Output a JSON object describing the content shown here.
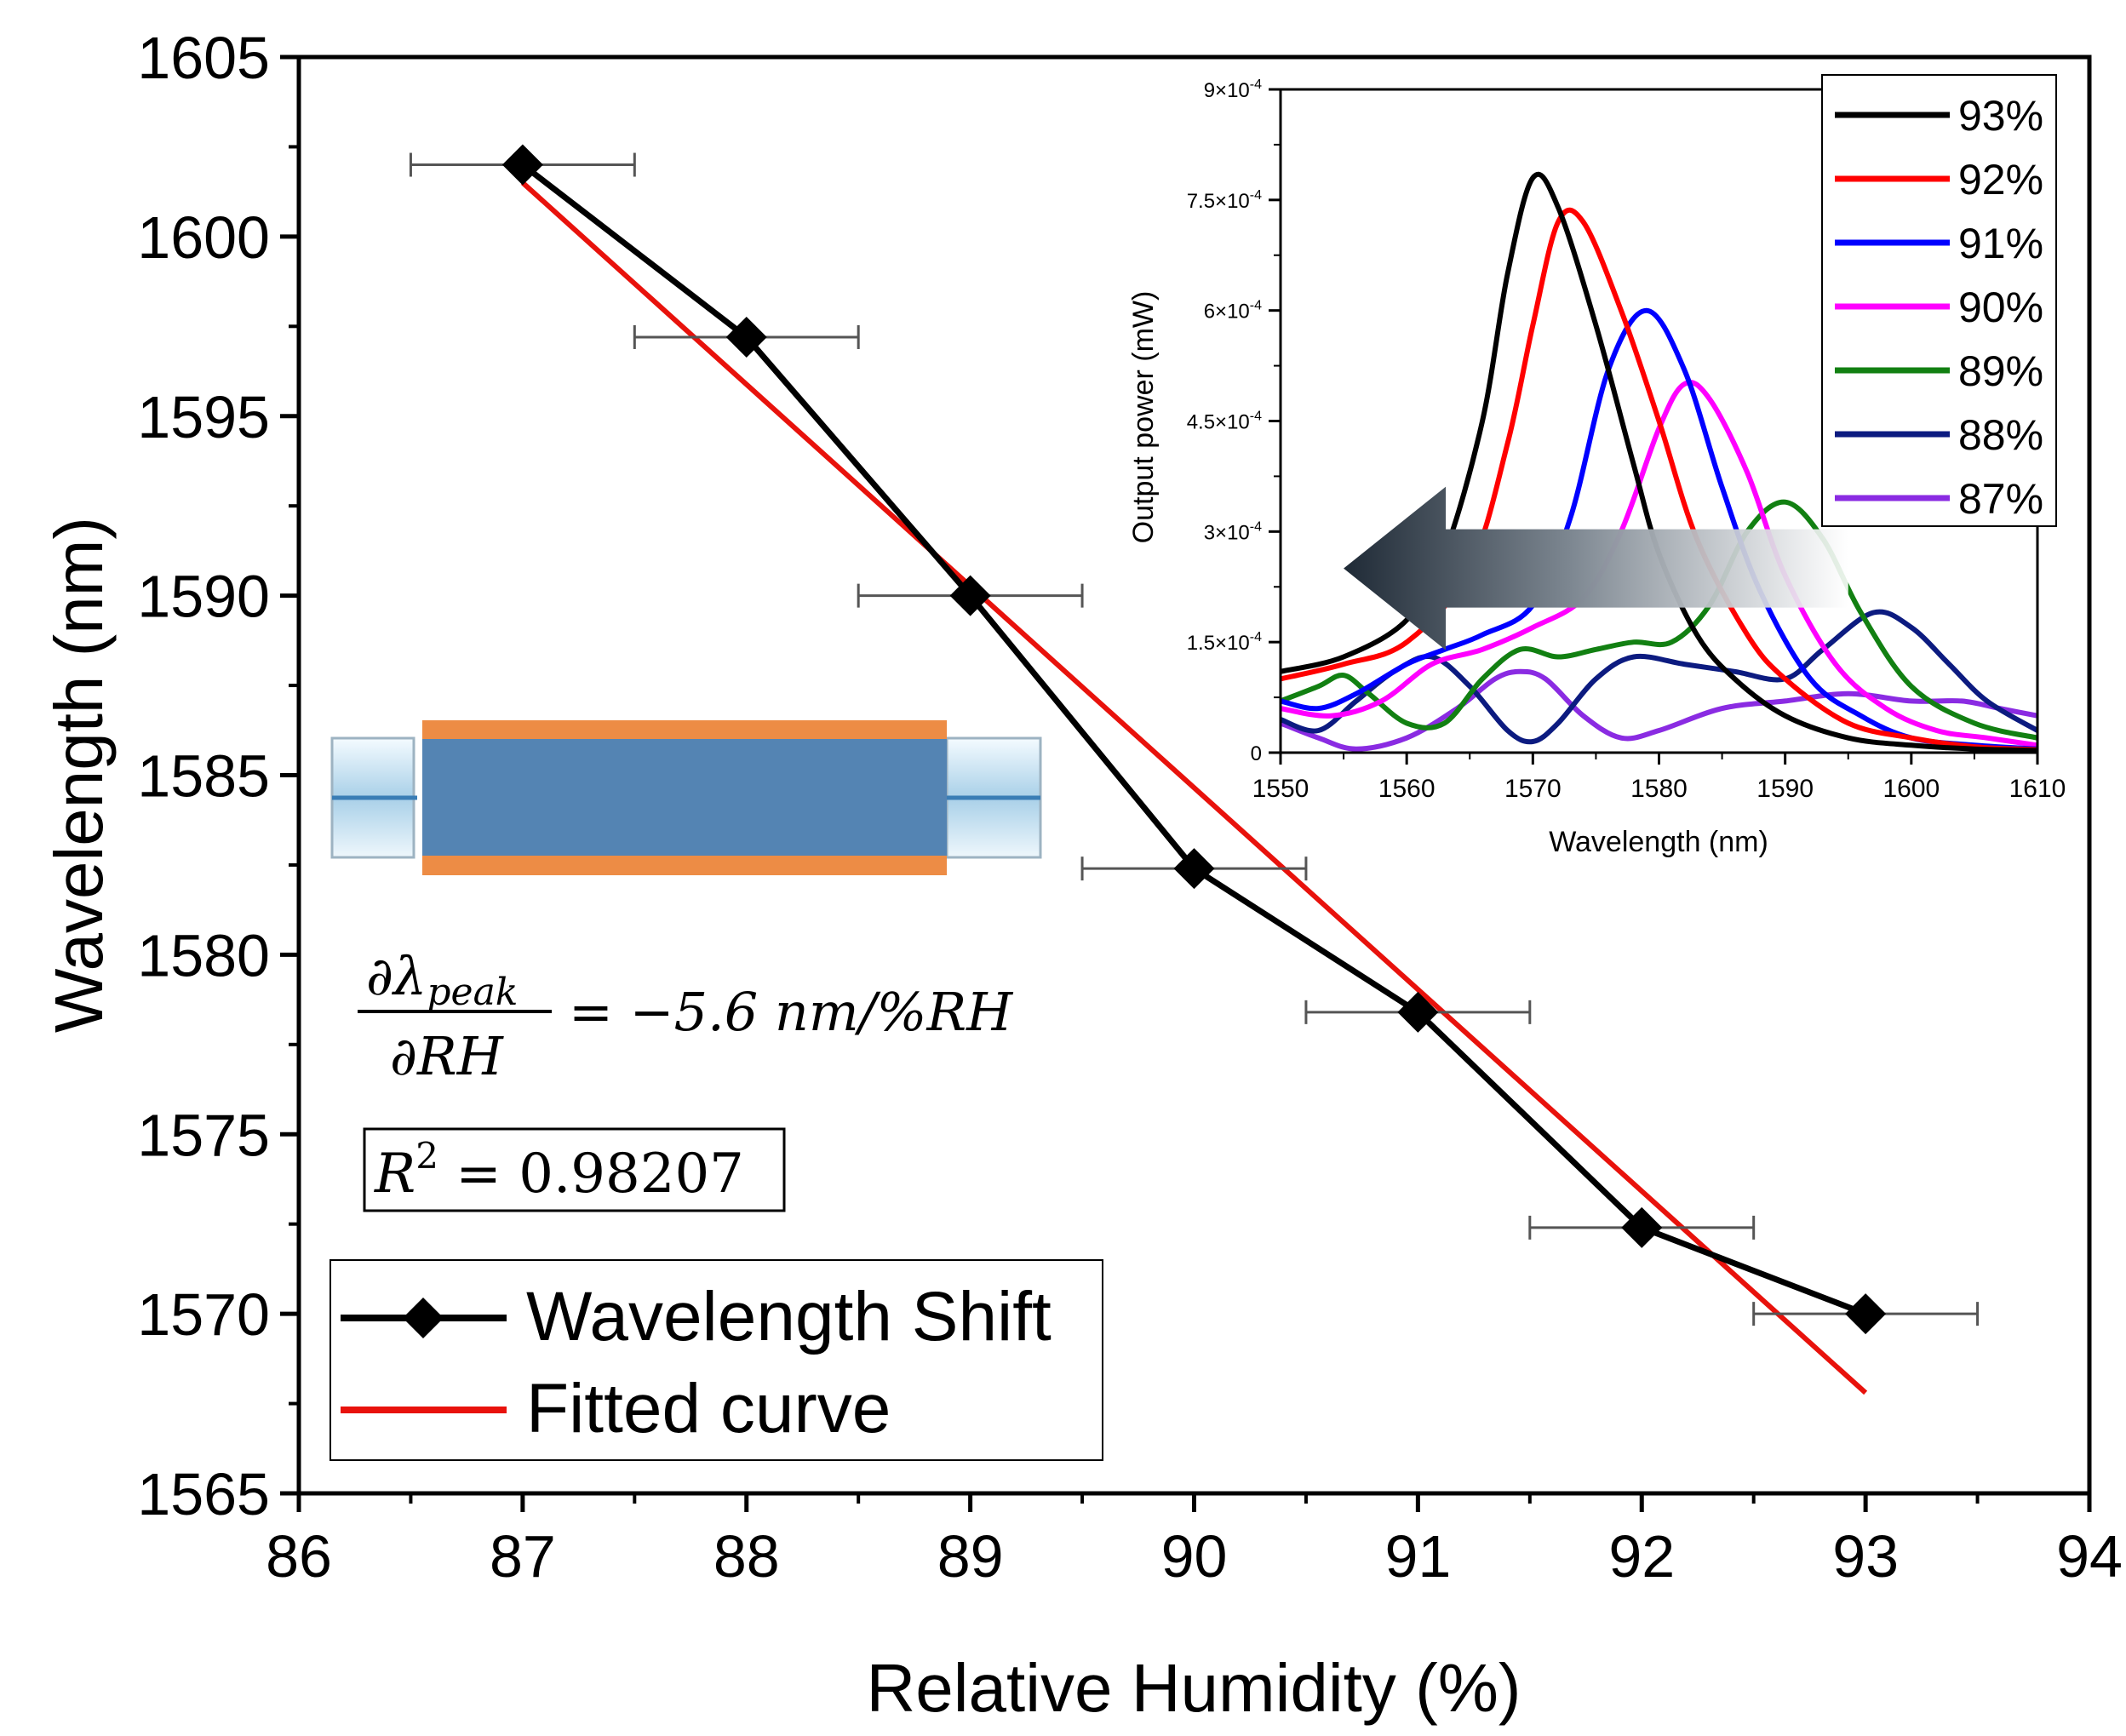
{
  "chart_data": [
    {
      "type": "line",
      "name": "main",
      "xlabel": "Relative Humidity (%)",
      "ylabel": "Wavelength (nm)",
      "xlim": [
        86,
        94
      ],
      "ylim": [
        1565,
        1605
      ],
      "xticks": [
        86,
        87,
        88,
        89,
        90,
        91,
        92,
        93,
        94
      ],
      "yticks": [
        1565,
        1570,
        1575,
        1580,
        1585,
        1590,
        1595,
        1600,
        1605
      ],
      "series": [
        {
          "name": "Wavelength Shift",
          "color": "#000000",
          "marker": "diamond",
          "x": [
            87,
            88,
            89,
            90,
            91,
            92,
            93
          ],
          "y": [
            1602,
            1597.2,
            1590,
            1582.4,
            1578.4,
            1572.4,
            1570
          ],
          "xerr": 0.5
        },
        {
          "name": "Fitted curve",
          "color": "#e8120c",
          "x": [
            87,
            93
          ],
          "y": [
            1601.5,
            1567.8
          ]
        }
      ],
      "legend": {
        "position": "bottom-left",
        "entries": [
          "Wavelength Shift",
          "Fitted curve"
        ]
      },
      "annotations": {
        "eq_lhs_num": "∂λ",
        "eq_lhs_num_sub": "peak",
        "eq_lhs_den": "∂RH",
        "eq_rhs": "= −5.6 nm/%RH",
        "r2_prefix": "R",
        "r2_sup": "2",
        "r2_rest": " = 0.98207"
      }
    },
    {
      "type": "line",
      "name": "inset",
      "xlabel": "Wavelength (nm)",
      "ylabel": "Output power (mW)",
      "xlim": [
        1550,
        1610
      ],
      "ylim": [
        0,
        0.0009
      ],
      "xticks": [
        1550,
        1560,
        1570,
        1580,
        1590,
        1600,
        1610
      ],
      "yticks": [
        {
          "value": 0,
          "mant": "0",
          "exp": ""
        },
        {
          "value": 0.00015,
          "mant": "1.5×10",
          "exp": "-4"
        },
        {
          "value": 0.0003,
          "mant": "3×10",
          "exp": "-4"
        },
        {
          "value": 0.00045,
          "mant": "4.5×10",
          "exp": "-4"
        },
        {
          "value": 0.0006,
          "mant": "6×10",
          "exp": "-4"
        },
        {
          "value": 0.00075,
          "mant": "7.5×10",
          "exp": "-4"
        },
        {
          "value": 0.0009,
          "mant": "9×10",
          "exp": "-4"
        }
      ],
      "legend": {
        "position": "top-right",
        "entries": [
          "93%",
          "92%",
          "91%",
          "90%",
          "89%",
          "88%",
          "87%"
        ]
      },
      "arrow": {
        "from_x": 1595,
        "to_x": 1555,
        "y": 0.00025,
        "meaning": "peak shift direction"
      },
      "series": [
        {
          "name": "93%",
          "color": "#000000",
          "x": [
            1550,
            1555,
            1560,
            1563,
            1566,
            1568,
            1570,
            1572,
            1575,
            1578,
            1580,
            1583,
            1586,
            1590,
            1595,
            1600,
            1605,
            1610
          ],
          "y": [
            0.00011,
            0.00013,
            0.00018,
            0.00027,
            0.00045,
            0.00065,
            0.00078,
            0.00074,
            0.00058,
            0.00039,
            0.00027,
            0.00016,
            0.0001,
            5e-05,
            2e-05,
            1e-05,
            5e-06,
            3e-06
          ]
        },
        {
          "name": "92%",
          "color": "#ff0000",
          "x": [
            1550,
            1555,
            1560,
            1565,
            1568,
            1570,
            1572,
            1574,
            1577,
            1580,
            1583,
            1587,
            1590,
            1595,
            1600,
            1605,
            1610
          ],
          "y": [
            0.0001,
            0.00012,
            0.00015,
            0.00025,
            0.00042,
            0.00058,
            0.00072,
            0.00072,
            0.0006,
            0.00045,
            0.00029,
            0.00016,
            0.0001,
            4e-05,
            2e-05,
            8e-06,
            4e-06
          ]
        },
        {
          "name": "91%",
          "color": "#0000ff",
          "x": [
            1550,
            1553,
            1556,
            1560,
            1563,
            1566,
            1570,
            1573,
            1576,
            1579,
            1582,
            1585,
            1588,
            1592,
            1596,
            1600,
            1605,
            1610
          ],
          "y": [
            7e-05,
            6e-05,
            8e-05,
            0.00012,
            0.00014,
            0.00016,
            0.0002,
            0.00032,
            0.00052,
            0.0006,
            0.00052,
            0.00036,
            0.00022,
            0.0001,
            5e-05,
            2e-05,
            1e-05,
            5e-06
          ]
        },
        {
          "name": "90%",
          "color": "#ff00ff",
          "x": [
            1550,
            1554,
            1558,
            1562,
            1566,
            1570,
            1574,
            1577,
            1580,
            1582,
            1584,
            1587,
            1590,
            1594,
            1598,
            1602,
            1606,
            1610
          ],
          "y": [
            6e-05,
            5e-05,
            7e-05,
            0.00012,
            0.00014,
            0.00017,
            0.00021,
            0.0003,
            0.00044,
            0.0005,
            0.00048,
            0.00038,
            0.00024,
            0.00012,
            6e-05,
            3e-05,
            2e-05,
            1e-05
          ]
        },
        {
          "name": "89%",
          "color": "#128012",
          "x": [
            1550,
            1553,
            1555,
            1557,
            1560,
            1563,
            1566,
            1569,
            1572,
            1575,
            1578,
            1581,
            1584,
            1587,
            1590,
            1593,
            1596,
            1600,
            1605,
            1610
          ],
          "y": [
            7e-05,
            9e-05,
            0.000105,
            8e-05,
            4e-05,
            4e-05,
            0.0001,
            0.00014,
            0.00013,
            0.00014,
            0.00015,
            0.00015,
            0.0002,
            0.0003,
            0.00034,
            0.00029,
            0.00019,
            9e-05,
            4e-05,
            2e-05
          ]
        },
        {
          "name": "88%",
          "color": "#0c1b80",
          "x": [
            1550,
            1553,
            1556,
            1559,
            1562,
            1565,
            1568,
            1570,
            1572,
            1575,
            1578,
            1582,
            1586,
            1590,
            1593,
            1597,
            1600,
            1603,
            1606,
            1610
          ],
          "y": [
            4.5e-05,
            3e-05,
            7e-05,
            0.00011,
            0.00013,
            9e-05,
            3e-05,
            1.5e-05,
            4e-05,
            0.0001,
            0.00013,
            0.00012,
            0.00011,
            0.0001,
            0.00014,
            0.00019,
            0.00017,
            0.00012,
            7e-05,
            3e-05
          ]
        },
        {
          "name": "87%",
          "color": "#8a2be2",
          "x": [
            1550,
            1553,
            1556,
            1560,
            1564,
            1567,
            1569,
            1571,
            1574,
            1577,
            1580,
            1585,
            1590,
            1595,
            1600,
            1604,
            1607,
            1610
          ],
          "y": [
            4e-05,
            2e-05,
            5e-06,
            2e-05,
            6e-05,
            0.0001,
            0.00011,
            0.0001,
            5e-05,
            2e-05,
            3e-05,
            6e-05,
            7e-05,
            8e-05,
            7e-05,
            7e-05,
            6e-05,
            5e-05
          ]
        }
      ]
    }
  ]
}
